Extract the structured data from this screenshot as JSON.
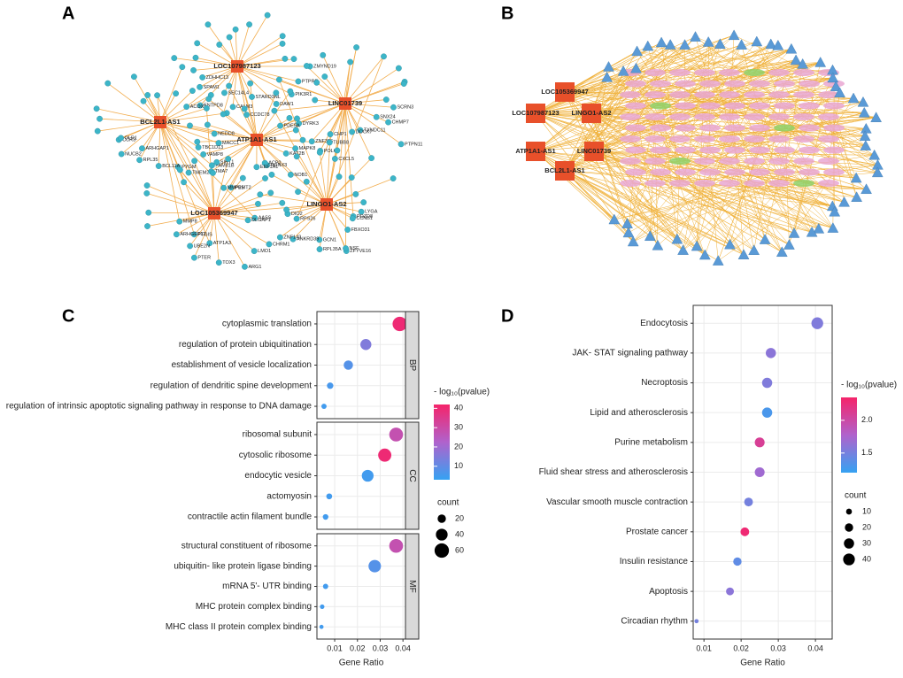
{
  "panel_labels": [
    "A",
    "B",
    "C",
    "D"
  ],
  "networks": [
    {
      "hubs": [
        "LOC107987123",
        "LINC01739",
        "BCL2L1-AS1",
        "ATP1A1-AS1",
        "LINGO1-AS2",
        "LOC105369947"
      ],
      "genes": [
        [
          "ZMYND19",
          "PTPRR",
          "PIK3R1",
          "DAW1",
          "STARD3NL",
          "CCDC78",
          "CALM3",
          "SEC14L4",
          "ENTPD8",
          "ACOX3",
          "SPAM1",
          "ZDHHC13"
        ],
        [
          "SCRN3",
          "SNX24",
          "CHMP7",
          "PTPN11",
          "TXNDC11",
          "DOCK7",
          "CXCL5",
          "POLQ",
          "CHP1",
          "ZNF396",
          "DYRK3",
          "PDE5A"
        ],
        [
          "NEDD8",
          "MACC1",
          "TBC1D13",
          "FAM81B",
          "TMEM236",
          "PYGM",
          "BCL11A",
          "RPL35",
          "ARHGAP1",
          "NUCB2",
          "CCR3",
          "OLR1"
        ],
        [
          "TUBB8",
          "MAPK8",
          "KAT2B",
          "NOB1",
          "RUNX3",
          "ACP2",
          "EEF1A1",
          "PRMT2",
          "MMP25",
          "TMA7",
          "SIRT1",
          "VAMP8"
        ],
        [
          "LYGA",
          "PDZD8",
          "CCNB1",
          "FBXO31",
          "ZFYVE16",
          "NSF",
          "RPL35A",
          "GCN1",
          "ANKRD39",
          "ZNF142",
          "RPS26",
          "DIO2"
        ],
        [
          "AASS",
          "DLGAP1",
          "CHRM1",
          "LMO1",
          "ARG1",
          "TOX3",
          "ATP1A3",
          "PTER",
          "UBE2N",
          "PTGIS",
          "ARHGEF12",
          "MMP8"
        ]
      ]
    },
    {
      "hubs": [
        "LOC105369947",
        "LOC107987123",
        "LINGO1-AS2",
        "ATP1A1-AS1",
        "LINC01739",
        "BCL2L1-AS1"
      ]
    }
  ],
  "chart_data": [
    {
      "type": "dot",
      "xlabel": "Gene Ratio",
      "xlim": [
        0.0022,
        0.0411
      ],
      "xticks": [
        0.01,
        0.02,
        0.03,
        0.04
      ],
      "grid": true,
      "color_title": "- log₁₀(pvalue)",
      "color_lim": [
        3,
        42
      ],
      "color_ticks": [
        10,
        20,
        30,
        40
      ],
      "colors": [
        "#35a2f2",
        "#b062cc",
        "#f5246a"
      ],
      "size_title": "count",
      "size_ticks": [
        20,
        40,
        60
      ],
      "facets": [
        {
          "name": "BP",
          "categories": [
            "cytoplasmic translation",
            "regulation of protein ubiquitination",
            "establishment of vesicle localization",
            "regulation of dendritic spine development",
            "regulation of intrinsic apoptotic signaling pathway in response to DNA damage"
          ],
          "x": [
            0.0386,
            0.0237,
            0.016,
            0.008,
            0.0053
          ],
          "neg_log10_pvalue": [
            40,
            15,
            8,
            6,
            5
          ],
          "count": [
            60,
            35,
            25,
            12,
            8
          ]
        },
        {
          "name": "CC",
          "categories": [
            "ribosomal subunit",
            "cytosolic ribosome",
            "endocytic vesicle",
            "actomyosin",
            "contractile actin filament bundle"
          ],
          "x": [
            0.037,
            0.032,
            0.0245,
            0.0076,
            0.006
          ],
          "neg_log10_pvalue": [
            28,
            40,
            5,
            5,
            5
          ],
          "count": [
            55,
            50,
            40,
            10,
            9
          ]
        },
        {
          "name": "MF",
          "categories": [
            "structural constituent of ribosome",
            "ubiquitin- like protein ligase binding",
            "mRNA 5'- UTR binding",
            "MHC protein complex binding",
            "MHC class II protein complex binding"
          ],
          "x": [
            0.037,
            0.0276,
            0.006,
            0.0045,
            0.0042
          ],
          "neg_log10_pvalue": [
            28,
            8,
            5,
            5,
            5
          ],
          "count": [
            55,
            45,
            8,
            6,
            5
          ]
        }
      ]
    },
    {
      "type": "dot",
      "xlabel": "Gene Ratio",
      "xlim": [
        0.0071,
        0.0445
      ],
      "xticks": [
        0.01,
        0.02,
        0.03,
        0.04
      ],
      "grid": true,
      "color_title": "- log₁₀(pvalue)",
      "color_lim": [
        1.2,
        2.35
      ],
      "color_ticks": [
        1.5,
        {
          "value": 2,
          "label": "2.0"
        }
      ],
      "colors": [
        "#35a2f2",
        "#b062cc",
        "#f5246a"
      ],
      "size_title": "count",
      "size_ticks": [
        10,
        20,
        30,
        40
      ],
      "categories": [
        "Endocytosis",
        "JAK- STAT signaling pathway",
        "Necroptosis",
        "Lipid and atherosclerosis",
        "Purine metabolism",
        "Fluid shear stress and atherosclerosis",
        "Vascular smooth muscle contraction",
        "Prostate cancer",
        "Insulin resistance",
        "Apoptosis",
        "Circadian rhythm"
      ],
      "x": [
        0.0405,
        0.028,
        0.027,
        0.027,
        0.025,
        0.025,
        0.022,
        0.021,
        0.019,
        0.017,
        0.008
      ],
      "neg_log10_pvalue": [
        1.55,
        1.6,
        1.55,
        1.3,
        2.1,
        1.7,
        1.5,
        2.3,
        1.4,
        1.6,
        1.5
      ],
      "count": [
        40,
        30,
        30,
        30,
        28,
        28,
        22,
        22,
        20,
        18,
        5
      ]
    }
  ]
}
